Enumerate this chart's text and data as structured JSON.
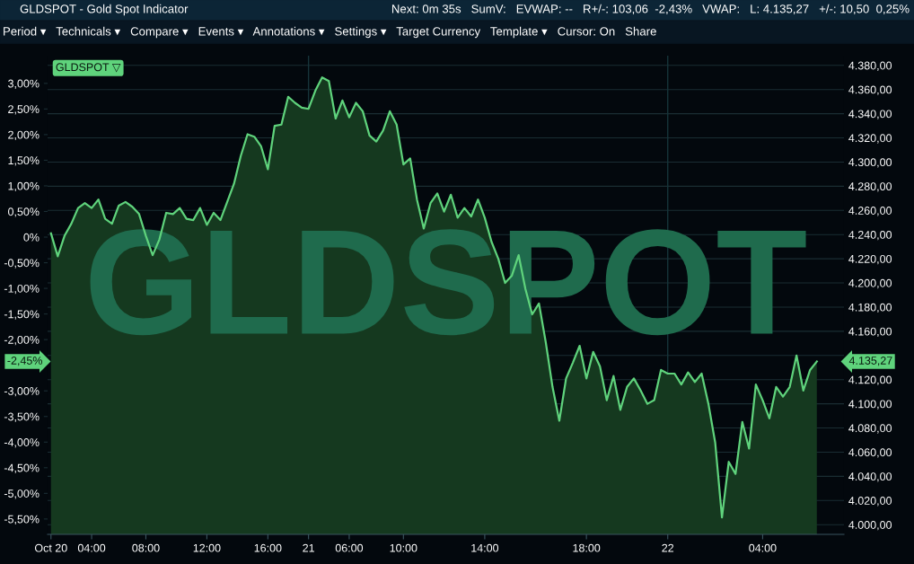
{
  "chart_data": {
    "type": "area",
    "title": "GLDSPOT - Gold Spot Indicator",
    "subtitle": "Next: 0m 35s   SumV:   EVWAP: --   R+/-: 103,06  -2,43%   VWAP:   L: 4.135,27   +/-: 10,50  0,25%",
    "annotations": [
      "Period ▾   Technicals ▾   Compare ▾   Events ▾   Annotations ▾   Settings ▾   Target Currency   Template ▾   Cursor: On   Share",
      "GLDSPOT",
      "GLDSPOT ▽",
      "-2,45%",
      "4.135,27"
    ],
    "categories": [
      "Oct 20",
      null,
      null,
      null,
      null,
      null,
      "04:00",
      null,
      null,
      null,
      null,
      null,
      null,
      null,
      "08:00",
      null,
      null,
      null,
      null,
      null,
      null,
      null,
      null,
      "12:00",
      null,
      null,
      null,
      null,
      null,
      null,
      null,
      null,
      "16:00",
      null,
      null,
      null,
      null,
      null,
      "21",
      null,
      null,
      null,
      null,
      null,
      "06:00",
      null,
      null,
      null,
      null,
      null,
      null,
      null,
      "10:00",
      null,
      null,
      null,
      null,
      null,
      null,
      null,
      null,
      null,
      null,
      null,
      "14:00",
      null,
      null,
      null,
      null,
      null,
      null,
      null,
      null,
      null,
      null,
      null,
      null,
      null,
      null,
      "18:00",
      null,
      null,
      null,
      null,
      null,
      null,
      null,
      null,
      null,
      null,
      null,
      "22",
      null,
      null,
      null,
      null,
      null,
      null,
      null,
      null,
      null,
      null,
      null,
      null,
      null,
      "04:00",
      null,
      null,
      null,
      null,
      null,
      null,
      null,
      null
    ],
    "series": [
      {
        "color": "#5fd37c",
        "values": [
          4241,
          4222,
          4239,
          4249,
          4262,
          4266,
          4262,
          4269,
          4253,
          4249,
          4264,
          4267,
          4263,
          4257,
          4239,
          4223,
          4236,
          4258,
          4257,
          4262,
          4253,
          4252,
          4262,
          4248,
          4258,
          4252,
          4267,
          4282,
          4305,
          4323,
          4321,
          4313,
          4294,
          4330,
          4331,
          4354,
          4349,
          4345,
          4344,
          4359,
          4370,
          4367,
          4336,
          4351,
          4337,
          4349,
          4342,
          4322,
          4317,
          4326,
          4342,
          4331,
          4298,
          4303,
          4269,
          4245,
          4266,
          4274,
          4259,
          4273,
          4254,
          4262,
          4255,
          4269,
          4254,
          4234,
          4220,
          4200,
          4206,
          4223,
          4195,
          4174,
          4183,
          4151,
          4114,
          4086,
          4121,
          4134,
          4148,
          4121,
          4143,
          4131,
          4103,
          4123,
          4095,
          4114,
          4121,
          4111,
          4100,
          4103,
          4128,
          4125,
          4125,
          4116,
          4126,
          4118,
          4125,
          4100,
          4068,
          4006,
          4052,
          4042,
          4085,
          4063,
          4116,
          4103,
          4088,
          4114,
          4106,
          4114,
          4140,
          4111,
          4128,
          4135
        ]
      }
    ],
    "ylim": [
      3992,
      4388
    ],
    "yticks": [
      {
        "value": 4000,
        "label": "4.000,00"
      },
      {
        "value": 4020,
        "label": "4.020,00"
      },
      {
        "value": 4040,
        "label": "4.040,00"
      },
      {
        "value": 4060,
        "label": "4.060,00"
      },
      {
        "value": 4080,
        "label": "4.080,00"
      },
      {
        "value": 4100,
        "label": "4.100,00"
      },
      {
        "value": 4120,
        "label": "4.120,00"
      },
      {
        "value": 4140,
        "label": null
      },
      {
        "value": 4160,
        "label": "4.160,00"
      },
      {
        "value": 4180,
        "label": "4.180,00"
      },
      {
        "value": 4200,
        "label": "4.200,00"
      },
      {
        "value": 4220,
        "label": "4.220,00"
      },
      {
        "value": 4240,
        "label": "4.240,00"
      },
      {
        "value": 4260,
        "label": "4.260,00"
      },
      {
        "value": 4280,
        "label": "4.280,00"
      },
      {
        "value": 4300,
        "label": "4.300,00"
      },
      {
        "value": 4320,
        "label": "4.320,00"
      },
      {
        "value": 4340,
        "label": "4.340,00"
      },
      {
        "value": 4360,
        "label": "4.360,00"
      },
      {
        "value": 4380,
        "label": "4.380,00"
      }
    ],
    "y2lim": [
      -5.8,
      3.54
    ],
    "y2ticks": [
      {
        "value": -5.5,
        "label": "-5,50%"
      },
      {
        "value": -5,
        "label": "-5,00%"
      },
      {
        "value": -4.5,
        "label": "-4,50%"
      },
      {
        "value": -4,
        "label": "-4,00%"
      },
      {
        "value": -3.5,
        "label": "-3,50%"
      },
      {
        "value": -3,
        "label": "-3,00%"
      },
      {
        "value": -2,
        "label": "-2,00%"
      },
      {
        "value": -1.5,
        "label": "-1,50%"
      },
      {
        "value": -1,
        "label": "-1,00%"
      },
      {
        "value": -0.5,
        "label": "-0,50%"
      },
      {
        "value": 0,
        "label": "0%"
      },
      {
        "value": 0.5,
        "label": "0,50%"
      },
      {
        "value": 1,
        "label": "1,00%"
      },
      {
        "value": 1.5,
        "label": "1,50%"
      },
      {
        "value": 2,
        "label": "2,00%"
      },
      {
        "value": 2.5,
        "label": "2,50%"
      },
      {
        "value": 3,
        "label": "3,00%"
      }
    ],
    "ref_lines": [
      {
        "axis": "x",
        "value": "21",
        "color": "#16343a"
      },
      {
        "axis": "x",
        "value": "22",
        "color": "#16343a"
      }
    ],
    "grid": "y"
  }
}
